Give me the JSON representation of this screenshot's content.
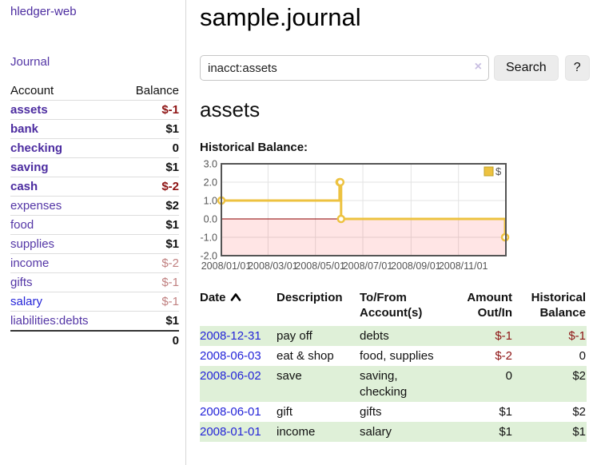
{
  "sidebar": {
    "brand": "hledger-web",
    "journal_link": "Journal",
    "table": {
      "headers": [
        "Account",
        "Balance"
      ],
      "accounts": [
        {
          "name": "assets",
          "indent": 0,
          "bold": true,
          "balance": "$-1",
          "balance_style": "neg"
        },
        {
          "name": "bank",
          "indent": 1,
          "bold": true,
          "balance": "$1",
          "balance_style": "pos"
        },
        {
          "name": "checking",
          "indent": 2,
          "bold": true,
          "balance": "0",
          "balance_style": "pos"
        },
        {
          "name": "saving",
          "indent": 2,
          "bold": true,
          "balance": "$1",
          "balance_style": "pos"
        },
        {
          "name": "cash",
          "indent": 1,
          "bold": true,
          "balance": "$-2",
          "balance_style": "neg"
        },
        {
          "name": "expenses",
          "indent": 0,
          "bold": false,
          "balance": "$2",
          "balance_style": "pos"
        },
        {
          "name": "food",
          "indent": 1,
          "bold": false,
          "balance": "$1",
          "balance_style": "pos"
        },
        {
          "name": "supplies",
          "indent": 1,
          "bold": false,
          "balance": "$1",
          "balance_style": "pos"
        },
        {
          "name": "income",
          "indent": 0,
          "bold": false,
          "balance": "$-2",
          "balance_style": "neg-muted"
        },
        {
          "name": "gifts",
          "indent": 1,
          "bold": false,
          "balance": "$-1",
          "balance_style": "neg-muted"
        },
        {
          "name": "salary",
          "indent": 1,
          "bold": false,
          "balance": "$-1",
          "balance_style": "neg-muted",
          "link_style": "blue"
        },
        {
          "name": "liabilities:debts",
          "indent": 0,
          "bold": false,
          "balance": "$1",
          "balance_style": "pos"
        }
      ],
      "total": "0"
    }
  },
  "main": {
    "title": "sample.journal",
    "search": {
      "value": "inacct:assets",
      "clear_icon": "×",
      "search_button": "Search",
      "help_button": "?"
    },
    "section_title": "assets",
    "chart_title": "Historical Balance:",
    "chart_data": {
      "type": "line",
      "title": "Historical Balance",
      "step": true,
      "ylim": [
        -2,
        3
      ],
      "ytick_step": 1,
      "x_range_days": [
        0,
        366
      ],
      "xticks": [
        {
          "day": 0,
          "label": "2008/01/01"
        },
        {
          "day": 60,
          "label": "2008/03/01"
        },
        {
          "day": 121,
          "label": "2008/05/01"
        },
        {
          "day": 182,
          "label": "2008/07/01"
        },
        {
          "day": 244,
          "label": "2008/09/01"
        },
        {
          "day": 305,
          "label": "2008/11/01"
        }
      ],
      "series": [
        {
          "name": "$",
          "color": "#edc240",
          "points": [
            {
              "date": "2008-01-01",
              "day": 0,
              "value": 1
            },
            {
              "date": "2008-06-01",
              "day": 152,
              "value": 2
            },
            {
              "date": "2008-06-02",
              "day": 153,
              "value": 2
            },
            {
              "date": "2008-06-03",
              "day": 154,
              "value": 0
            },
            {
              "date": "2008-12-31",
              "day": 365,
              "value": -1
            }
          ]
        }
      ],
      "legend": {
        "label": "$",
        "position": "top-right"
      },
      "grid": true,
      "negative_region_color": "rgba(255,0,0,0.10)",
      "zero_line_color": "#8b0000"
    },
    "transactions": {
      "headers": [
        {
          "lines": [
            "Date"
          ],
          "align": "left",
          "sorted": "asc"
        },
        {
          "lines": [
            "Description"
          ],
          "align": "left"
        },
        {
          "lines": [
            "To/From",
            "Account(s)"
          ],
          "align": "left"
        },
        {
          "lines": [
            "Amount",
            "Out/In"
          ],
          "align": "right"
        },
        {
          "lines": [
            "Historical",
            "Balance"
          ],
          "align": "right"
        }
      ],
      "rows": [
        {
          "date": "2008-12-31",
          "description": "pay off",
          "accounts": "debts",
          "amount": "$-1",
          "balance": "$-1"
        },
        {
          "date": "2008-06-03",
          "description": "eat & shop",
          "accounts": "food, supplies",
          "amount": "$-2",
          "balance": "0"
        },
        {
          "date": "2008-06-02",
          "description": "save",
          "accounts": "saving, checking",
          "amount": "0",
          "balance": "$2"
        },
        {
          "date": "2008-06-01",
          "description": "gift",
          "accounts": "gifts",
          "amount": "$1",
          "balance": "$2"
        },
        {
          "date": "2008-01-01",
          "description": "income",
          "accounts": "salary",
          "amount": "$1",
          "balance": "$1"
        }
      ]
    }
  },
  "colors": {
    "link_purple": "#5436a6",
    "link_blue": "#2424d8",
    "negative": "#8e1414",
    "negative_muted": "#c08080",
    "row_green": "#dff0d8",
    "series_gold": "#edc240",
    "grid_line": "#e3e3e3",
    "plot_border": "#545454"
  }
}
